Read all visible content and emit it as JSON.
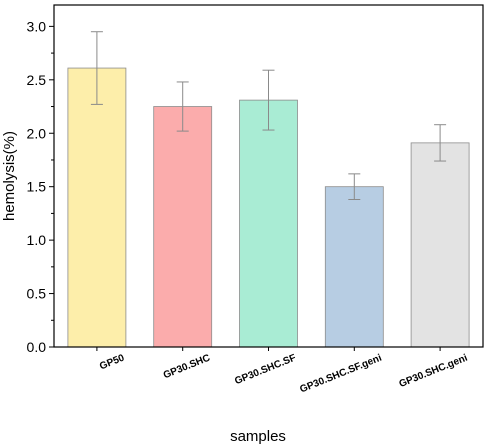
{
  "chart_data": {
    "type": "bar",
    "categories": [
      "GP50",
      "GP30.SHC",
      "GP30.SHC.SF",
      "GP30.SHC.SF.geni",
      "GP30.SHC.geni"
    ],
    "values": [
      2.61,
      2.25,
      2.31,
      1.5,
      1.91
    ],
    "error_low": [
      2.27,
      2.02,
      2.03,
      1.38,
      1.74
    ],
    "error_high": [
      2.95,
      2.48,
      2.59,
      1.62,
      2.08
    ],
    "colors": [
      "#fdeeaa",
      "#fbacac",
      "#a9ecd4",
      "#b7cde3",
      "#e3e3e3"
    ],
    "xlabel": "samples",
    "ylabel": "hemolysis(%)",
    "ylim": [
      0.0,
      3.2
    ],
    "yticks": [
      "0.0",
      "0.5",
      "1.0",
      "1.5",
      "2.0",
      "2.5",
      "3.0"
    ],
    "grid": false,
    "legend": "none"
  }
}
